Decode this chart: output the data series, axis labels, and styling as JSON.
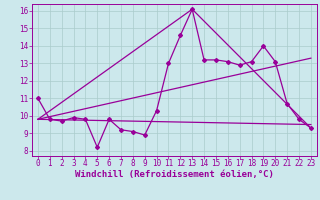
{
  "xlabel": "Windchill (Refroidissement éolien,°C)",
  "bg_color": "#cce8ec",
  "grid_color": "#aacccc",
  "line_color": "#990099",
  "xlim": [
    -0.5,
    23.5
  ],
  "ylim": [
    7.7,
    16.4
  ],
  "xticks": [
    0,
    1,
    2,
    3,
    4,
    5,
    6,
    7,
    8,
    9,
    10,
    11,
    12,
    13,
    14,
    15,
    16,
    17,
    18,
    19,
    20,
    21,
    22,
    23
  ],
  "yticks": [
    8,
    9,
    10,
    11,
    12,
    13,
    14,
    15,
    16
  ],
  "line1_x": [
    0,
    1,
    2,
    3,
    4,
    5,
    6,
    7,
    8,
    9,
    10,
    11,
    12,
    13,
    14,
    15,
    16,
    17,
    18,
    19,
    20,
    21,
    22,
    23
  ],
  "line1_y": [
    11.0,
    9.8,
    9.7,
    9.9,
    9.8,
    8.2,
    9.8,
    9.2,
    9.1,
    8.9,
    10.3,
    13.0,
    14.6,
    16.1,
    13.2,
    13.2,
    13.1,
    12.9,
    13.1,
    14.0,
    13.1,
    10.7,
    9.8,
    9.3
  ],
  "line2_x": [
    0,
    23
  ],
  "line2_y": [
    9.8,
    9.5
  ],
  "line3_x": [
    0,
    13,
    23
  ],
  "line3_y": [
    9.8,
    16.1,
    9.3
  ],
  "line4_x": [
    0,
    23
  ],
  "line4_y": [
    9.8,
    13.3
  ],
  "marker": "D",
  "markersize": 2.0,
  "linewidth": 0.9,
  "tick_fontsize": 5.5,
  "label_fontsize": 6.5
}
